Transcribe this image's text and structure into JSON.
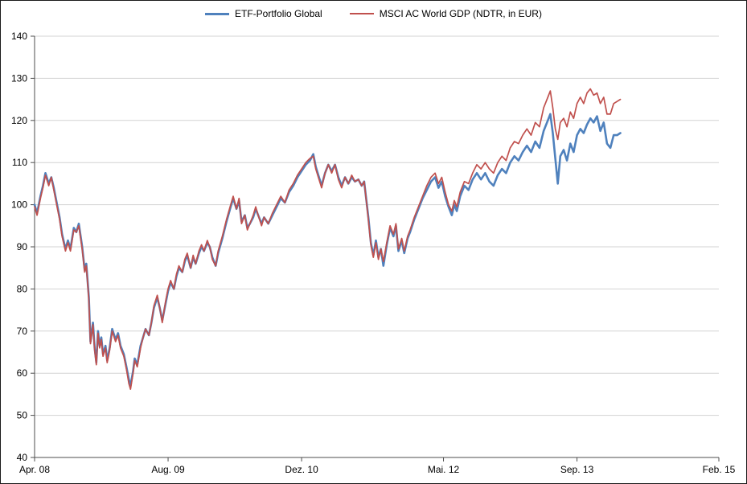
{
  "figure": {
    "background": "#FFFFFF",
    "border_color": "#1A1A1A",
    "gridline_color": "#D3D3D3",
    "axis_color": "#4D4D4D",
    "label_color": "#000000"
  },
  "chart_data": {
    "type": "line",
    "title": "",
    "xlabel": "",
    "ylabel": "",
    "legend_position": "top",
    "grid": "horizontal-major",
    "x_unit_note": "months since Apr 2008",
    "xlim": [
      0,
      82
    ],
    "ylim": [
      40,
      140
    ],
    "y_tick_step": 10,
    "x_ticks": [
      {
        "m": 0,
        "label": "Apr. 08"
      },
      {
        "m": 16,
        "label": "Aug. 09"
      },
      {
        "m": 32,
        "label": "Dez. 10"
      },
      {
        "m": 49,
        "label": "Mai. 12"
      },
      {
        "m": 65,
        "label": "Sep. 13"
      },
      {
        "m": 82,
        "label": "Feb. 15"
      }
    ],
    "series": [
      {
        "name": "ETF-Portfolio Global",
        "color": "#4F81BD",
        "width": 2.6
      },
      {
        "name": "MSCI AC World GDP (NDTR, in EUR)",
        "color": "#C0504D",
        "width": 1.7
      }
    ],
    "points": [
      [
        0,
        100,
        99.5
      ],
      [
        0.3,
        98,
        97.5
      ],
      [
        0.7,
        102,
        101.5
      ],
      [
        1,
        104.5,
        104
      ],
      [
        1.3,
        107.5,
        107
      ],
      [
        1.7,
        105,
        104.5
      ],
      [
        2,
        106.5,
        106.5
      ],
      [
        2.3,
        104,
        103.5
      ],
      [
        2.7,
        100,
        99.5
      ],
      [
        3,
        97,
        96.5
      ],
      [
        3.3,
        93,
        92.5
      ],
      [
        3.7,
        89.5,
        89
      ],
      [
        4,
        91.5,
        91
      ],
      [
        4.3,
        89.5,
        89
      ],
      [
        4.7,
        94.5,
        94
      ],
      [
        5,
        93.5,
        93.5
      ],
      [
        5.3,
        95.5,
        95
      ],
      [
        5.7,
        90,
        89.5
      ],
      [
        6,
        84.5,
        84
      ],
      [
        6.2,
        86,
        85.5
      ],
      [
        6.5,
        78,
        77.5
      ],
      [
        6.7,
        67.5,
        67
      ],
      [
        7,
        72,
        71.5
      ],
      [
        7.2,
        66,
        65.5
      ],
      [
        7.4,
        62.5,
        62
      ],
      [
        7.6,
        70,
        69.5
      ],
      [
        7.8,
        66.5,
        66
      ],
      [
        8,
        68.5,
        68
      ],
      [
        8.2,
        64.5,
        64
      ],
      [
        8.5,
        66.5,
        66
      ],
      [
        8.7,
        63,
        62.5
      ],
      [
        9,
        66,
        65.5
      ],
      [
        9.3,
        70.5,
        70
      ],
      [
        9.7,
        68,
        67.5
      ],
      [
        10,
        69.5,
        69
      ],
      [
        10.3,
        66.5,
        66
      ],
      [
        10.7,
        64.5,
        64
      ],
      [
        11,
        61.5,
        61
      ],
      [
        11.3,
        58.5,
        57.5
      ],
      [
        11.5,
        57,
        56.2
      ],
      [
        11.8,
        60.5,
        60
      ],
      [
        12,
        63.5,
        63
      ],
      [
        12.3,
        62,
        61.5
      ],
      [
        12.7,
        66.5,
        66
      ],
      [
        13,
        68.5,
        68.5
      ],
      [
        13.3,
        70.5,
        70.5
      ],
      [
        13.7,
        69,
        69
      ],
      [
        14,
        72,
        72
      ],
      [
        14.3,
        75.5,
        76
      ],
      [
        14.7,
        78,
        78.5
      ],
      [
        15,
        75.5,
        75.5
      ],
      [
        15.3,
        72.5,
        72
      ],
      [
        15.7,
        76.5,
        77
      ],
      [
        16,
        79.5,
        80
      ],
      [
        16.3,
        81.5,
        82
      ],
      [
        16.7,
        80,
        80
      ],
      [
        17,
        83,
        83.5
      ],
      [
        17.3,
        85,
        85.5
      ],
      [
        17.7,
        84,
        84
      ],
      [
        18,
        86.5,
        87
      ],
      [
        18.3,
        88,
        88.5
      ],
      [
        18.7,
        85,
        85
      ],
      [
        19,
        87.5,
        88
      ],
      [
        19.3,
        86,
        86
      ],
      [
        19.7,
        88.5,
        89
      ],
      [
        20,
        90,
        90.5
      ],
      [
        20.3,
        89,
        89
      ],
      [
        20.7,
        91,
        91.5
      ],
      [
        21,
        90,
        90
      ],
      [
        21.3,
        87.5,
        87
      ],
      [
        21.7,
        85.5,
        85.5
      ],
      [
        22,
        88.5,
        89
      ],
      [
        22.5,
        92,
        92.5
      ],
      [
        23,
        96,
        96.5
      ],
      [
        23.5,
        99.5,
        100
      ],
      [
        23.8,
        101.5,
        102
      ],
      [
        24.2,
        99,
        99
      ],
      [
        24.5,
        101,
        101.5
      ],
      [
        24.8,
        96,
        95.5
      ],
      [
        25.2,
        97.5,
        97.5
      ],
      [
        25.5,
        94.5,
        94
      ],
      [
        25.8,
        95.5,
        95.5
      ],
      [
        26.2,
        97,
        97.5
      ],
      [
        26.5,
        99,
        99.5
      ],
      [
        26.8,
        97.5,
        97.5
      ],
      [
        27.2,
        95.5,
        95
      ],
      [
        27.5,
        97,
        97
      ],
      [
        28,
        95.5,
        95.5
      ],
      [
        28.5,
        97.5,
        98
      ],
      [
        29,
        99.5,
        100
      ],
      [
        29.5,
        101.5,
        102
      ],
      [
        30,
        100.5,
        100.5
      ],
      [
        30.5,
        103,
        103.5
      ],
      [
        31,
        104.5,
        105
      ],
      [
        31.5,
        106.5,
        107
      ],
      [
        32,
        108,
        108.5
      ],
      [
        32.5,
        109.5,
        110
      ],
      [
        33,
        110.5,
        111
      ],
      [
        33.4,
        112,
        111.5
      ],
      [
        33.7,
        109,
        108.5
      ],
      [
        34,
        107,
        106.5
      ],
      [
        34.4,
        104.5,
        104
      ],
      [
        34.8,
        107.5,
        107.5
      ],
      [
        35.2,
        109.5,
        109.5
      ],
      [
        35.6,
        108,
        107.5
      ],
      [
        36,
        109.5,
        109.5
      ],
      [
        36.4,
        106.5,
        106
      ],
      [
        36.8,
        104.5,
        104
      ],
      [
        37.2,
        106.5,
        106.5
      ],
      [
        37.6,
        105,
        105
      ],
      [
        38,
        106.5,
        107
      ],
      [
        38.4,
        105.5,
        105.5
      ],
      [
        38.8,
        106,
        106
      ],
      [
        39.2,
        104.5,
        104.5
      ],
      [
        39.5,
        105.5,
        105.5
      ],
      [
        40,
        97,
        96.5
      ],
      [
        40.3,
        91,
        90.5
      ],
      [
        40.6,
        88,
        87.5
      ],
      [
        40.9,
        91.5,
        91
      ],
      [
        41.2,
        87.5,
        87
      ],
      [
        41.5,
        89.5,
        89.5
      ],
      [
        41.8,
        85.5,
        86.5
      ],
      [
        42.2,
        90.5,
        91
      ],
      [
        42.6,
        94.5,
        95
      ],
      [
        43,
        92.5,
        93
      ],
      [
        43.3,
        95,
        95.5
      ],
      [
        43.6,
        89,
        89.5
      ],
      [
        44,
        91.5,
        92
      ],
      [
        44.3,
        88.5,
        89
      ],
      [
        44.7,
        92,
        92.5
      ],
      [
        45,
        93.5,
        94
      ],
      [
        45.5,
        96.5,
        97
      ],
      [
        46,
        99,
        99.5
      ],
      [
        46.5,
        101.5,
        102
      ],
      [
        47,
        103.5,
        104.5
      ],
      [
        47.5,
        105.5,
        106.5
      ],
      [
        48,
        106.5,
        107.5
      ],
      [
        48.4,
        104,
        105
      ],
      [
        48.8,
        105.5,
        106.5
      ],
      [
        49.2,
        102,
        103
      ],
      [
        49.6,
        99.5,
        100
      ],
      [
        50,
        97.5,
        98.5
      ],
      [
        50.3,
        100,
        101
      ],
      [
        50.6,
        98.5,
        99.5
      ],
      [
        51,
        102,
        103
      ],
      [
        51.5,
        104.5,
        105.5
      ],
      [
        52,
        103.5,
        105
      ],
      [
        52.5,
        106,
        107.5
      ],
      [
        53,
        107.5,
        109.5
      ],
      [
        53.5,
        106,
        108.5
      ],
      [
        54,
        107.5,
        110
      ],
      [
        54.5,
        105.5,
        108.5
      ],
      [
        55,
        104.5,
        107.5
      ],
      [
        55.5,
        107,
        110
      ],
      [
        56,
        108.5,
        111.5
      ],
      [
        56.5,
        107.5,
        110.5
      ],
      [
        57,
        110,
        113.5
      ],
      [
        57.5,
        111.5,
        115
      ],
      [
        58,
        110.5,
        114.5
      ],
      [
        58.5,
        112.5,
        116.5
      ],
      [
        59,
        114,
        118
      ],
      [
        59.5,
        112.5,
        116.5
      ],
      [
        60,
        115,
        119.5
      ],
      [
        60.5,
        113.5,
        118.5
      ],
      [
        61,
        117.5,
        123
      ],
      [
        61.5,
        120,
        125.5
      ],
      [
        61.8,
        121.5,
        127
      ],
      [
        62.1,
        117,
        123
      ],
      [
        62.4,
        111,
        118
      ],
      [
        62.7,
        105,
        115.5
      ],
      [
        63,
        111.5,
        119.5
      ],
      [
        63.4,
        113,
        120.5
      ],
      [
        63.8,
        110.5,
        118.5
      ],
      [
        64.2,
        114.5,
        122
      ],
      [
        64.6,
        112.5,
        120.5
      ],
      [
        65,
        116.5,
        124
      ],
      [
        65.4,
        118,
        125.5
      ],
      [
        65.8,
        117,
        124
      ],
      [
        66.2,
        119,
        126.5
      ],
      [
        66.6,
        120.5,
        127.5
      ],
      [
        67,
        119.5,
        126
      ],
      [
        67.4,
        121,
        126.5
      ],
      [
        67.8,
        117.5,
        124
      ],
      [
        68.2,
        119.5,
        125.5
      ],
      [
        68.6,
        114.5,
        121.5
      ],
      [
        69,
        113.5,
        121.5
      ],
      [
        69.4,
        116.5,
        124
      ],
      [
        69.8,
        116.5,
        124.5
      ],
      [
        70.2,
        117,
        125
      ]
    ]
  }
}
